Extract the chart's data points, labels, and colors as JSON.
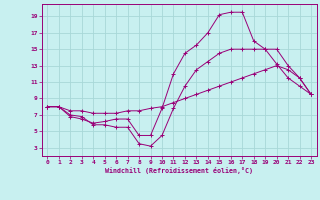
{
  "xlabel": "Windchill (Refroidissement éolien,°C)",
  "xlim": [
    -0.5,
    23.5
  ],
  "ylim": [
    2,
    20.5
  ],
  "xticks": [
    0,
    1,
    2,
    3,
    4,
    5,
    6,
    7,
    8,
    9,
    10,
    11,
    12,
    13,
    14,
    15,
    16,
    17,
    18,
    19,
    20,
    21,
    22,
    23
  ],
  "yticks": [
    3,
    5,
    7,
    9,
    11,
    13,
    15,
    17,
    19
  ],
  "bg_color": "#c8f0f0",
  "grid_color": "#a8d8d8",
  "line_color": "#990077",
  "curves": [
    {
      "x": [
        0,
        1,
        2,
        3,
        4,
        5,
        6,
        7,
        8,
        9,
        10,
        11,
        12,
        13,
        14,
        15,
        16,
        17,
        18,
        19,
        20,
        21,
        22,
        23
      ],
      "y": [
        8.0,
        8.0,
        6.8,
        6.5,
        6.0,
        6.2,
        6.5,
        6.5,
        4.5,
        4.5,
        7.8,
        12.0,
        14.5,
        15.5,
        17.0,
        19.2,
        19.5,
        19.5,
        16.0,
        15.0,
        13.2,
        11.5,
        10.5,
        9.5
      ]
    },
    {
      "x": [
        0,
        1,
        2,
        3,
        4,
        5,
        6,
        7,
        8,
        9,
        10,
        11,
        12,
        13,
        14,
        15,
        16,
        17,
        18,
        19,
        20,
        21,
        22,
        23
      ],
      "y": [
        8.0,
        8.0,
        7.0,
        6.8,
        5.8,
        5.8,
        5.5,
        5.5,
        3.5,
        3.2,
        4.5,
        7.8,
        10.5,
        12.5,
        13.5,
        14.5,
        15.0,
        15.0,
        15.0,
        15.0,
        15.0,
        13.0,
        11.5,
        9.5
      ]
    },
    {
      "x": [
        0,
        1,
        2,
        3,
        4,
        5,
        6,
        7,
        8,
        9,
        10,
        11,
        12,
        13,
        14,
        15,
        16,
        17,
        18,
        19,
        20,
        21,
        22,
        23
      ],
      "y": [
        8.0,
        8.0,
        7.5,
        7.5,
        7.2,
        7.2,
        7.2,
        7.5,
        7.5,
        7.8,
        8.0,
        8.5,
        9.0,
        9.5,
        10.0,
        10.5,
        11.0,
        11.5,
        12.0,
        12.5,
        13.0,
        12.5,
        11.5,
        9.5
      ]
    }
  ]
}
